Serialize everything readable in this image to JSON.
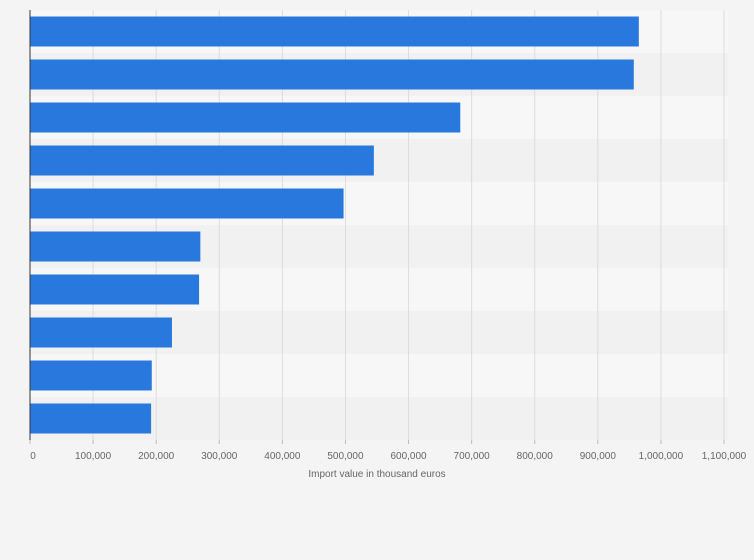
{
  "colors": {
    "bar": "#2878de",
    "band_light": "#f7f7f7",
    "band_dark": "#f1f1f1",
    "grid": "#dcdcdc",
    "axis": "#333333"
  },
  "chart_data": {
    "type": "bar",
    "orientation": "horizontal",
    "categories": [
      "",
      "",
      "",
      "",
      "",
      "",
      "",
      "",
      "",
      ""
    ],
    "values": [
      965000,
      957000,
      682000,
      545000,
      497000,
      270000,
      268000,
      225000,
      193000,
      192000
    ],
    "xlabel": "Import value in thousand euros",
    "ylabel": "",
    "xlim": [
      0,
      1100000
    ],
    "xticks": [
      0,
      100000,
      200000,
      300000,
      400000,
      500000,
      600000,
      700000,
      800000,
      900000,
      1000000,
      1100000
    ],
    "xtick_labels": [
      "0",
      "100,000",
      "200,000",
      "300,000",
      "400,000",
      "500,000",
      "600,000",
      "700,000",
      "800,000",
      "900,000",
      "1,000,000",
      "1,100,000"
    ],
    "grid": true,
    "legend": "none"
  }
}
